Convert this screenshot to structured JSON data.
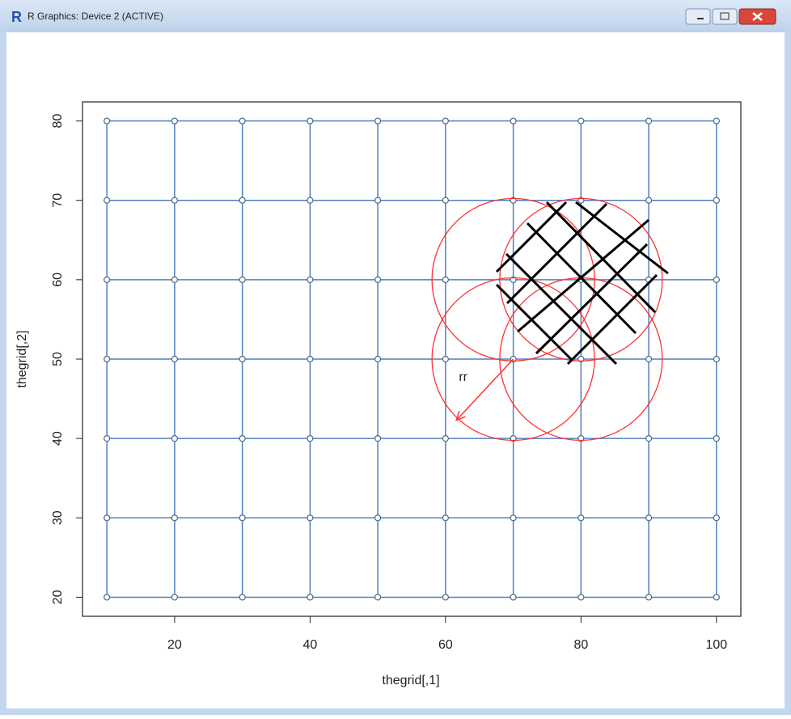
{
  "window": {
    "title": "R Graphics: Device 2 (ACTIVE)"
  },
  "chart_data": {
    "type": "scatter",
    "x_label": "thegrid[,1]",
    "y_label": "thegrid[,2]",
    "grid_x": [
      10,
      20,
      30,
      40,
      50,
      60,
      70,
      80,
      90,
      100
    ],
    "grid_y": [
      20,
      30,
      40,
      50,
      60,
      70,
      80
    ],
    "color": "#4f7fbf",
    "xlim": [
      6.4,
      103.6
    ],
    "ylim": [
      17.6,
      82.4
    ],
    "xticks": [
      20,
      40,
      60,
      80,
      100
    ],
    "yticks": [
      20,
      30,
      40,
      50,
      60,
      70,
      80
    ],
    "circles": [
      {
        "x": 70,
        "y": 60,
        "r": 12
      },
      {
        "x": 80,
        "y": 60,
        "r": 12
      },
      {
        "x": 70,
        "y": 50,
        "r": 12
      },
      {
        "x": 80,
        "y": 50,
        "r": 12
      }
    ],
    "circle_color": "#ff3030",
    "arrow": {
      "x0": 70,
      "y0": 50,
      "x1": 61.6,
      "y1": 42.3,
      "label": "rr",
      "label_x": 62.6,
      "label_y": 47.7
    }
  }
}
